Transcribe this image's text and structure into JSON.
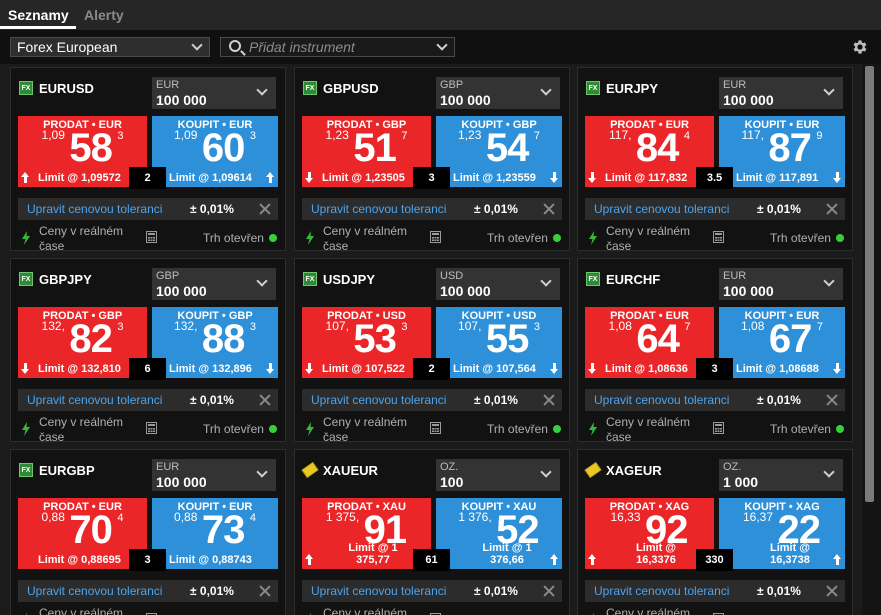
{
  "tabs": [
    {
      "label": "Seznamy",
      "active": true
    },
    {
      "label": "Alerty",
      "active": false
    }
  ],
  "toolbar": {
    "list_selected": "Forex European",
    "search_placeholder": "Přidat instrument",
    "settings_icon": "gear-icon"
  },
  "labels": {
    "tolerance_link": "Upravit cenovou toleranci",
    "realtime": "Ceny v reálném čase",
    "market_open": "Trh otevřen",
    "limit_prefix": "Limit @ "
  },
  "colors": {
    "sell": "#eb2629",
    "buy": "#2e90d8",
    "link": "#4ca4ee",
    "market_open_dot": "#38d038"
  },
  "cards": [
    {
      "instrument": "EURUSD",
      "icon": "fx-icon",
      "qty_currency": "EUR",
      "qty_value": "100 000",
      "sell": {
        "label": "PRODAT • EUR",
        "small": "1,09",
        "big": "58",
        "sup": "3",
        "limit": "1,09572",
        "arrow": "up"
      },
      "buy": {
        "label": "KOUPIT • EUR",
        "small": "1,09",
        "big": "60",
        "sup": "3",
        "limit": "1,09614",
        "arrow": "up"
      },
      "spread": "2",
      "tolerance": "± 0,01%"
    },
    {
      "instrument": "GBPUSD",
      "icon": "fx-icon",
      "qty_currency": "GBP",
      "qty_value": "100 000",
      "sell": {
        "label": "PRODAT • GBP",
        "small": "1,23",
        "big": "51",
        "sup": "7",
        "limit": "1,23505",
        "arrow": "down"
      },
      "buy": {
        "label": "KOUPIT • GBP",
        "small": "1,23",
        "big": "54",
        "sup": "7",
        "limit": "1,23559",
        "arrow": "down"
      },
      "spread": "3",
      "tolerance": "± 0,01%"
    },
    {
      "instrument": "EURJPY",
      "icon": "fx-icon",
      "qty_currency": "EUR",
      "qty_value": "100 000",
      "sell": {
        "label": "PRODAT • EUR",
        "small": "117,",
        "big": "84",
        "sup": "4",
        "limit": "117,832",
        "arrow": "down"
      },
      "buy": {
        "label": "KOUPIT • EUR",
        "small": "117,",
        "big": "87",
        "sup": "9",
        "limit": "117,891",
        "arrow": "down"
      },
      "spread": "3.5",
      "tolerance": "± 0,01%"
    },
    {
      "instrument": "GBPJPY",
      "icon": "fx-icon",
      "qty_currency": "GBP",
      "qty_value": "100 000",
      "sell": {
        "label": "PRODAT • GBP",
        "small": "132,",
        "big": "82",
        "sup": "3",
        "limit": "132,810",
        "arrow": "down"
      },
      "buy": {
        "label": "KOUPIT • GBP",
        "small": "132,",
        "big": "88",
        "sup": "3",
        "limit": "132,896",
        "arrow": "down"
      },
      "spread": "6",
      "tolerance": "± 0,01%"
    },
    {
      "instrument": "USDJPY",
      "icon": "fx-icon",
      "qty_currency": "USD",
      "qty_value": "100 000",
      "sell": {
        "label": "PRODAT • USD",
        "small": "107,",
        "big": "53",
        "sup": "3",
        "limit": "107,522",
        "arrow": "down"
      },
      "buy": {
        "label": "KOUPIT • USD",
        "small": "107,",
        "big": "55",
        "sup": "3",
        "limit": "107,564",
        "arrow": "down"
      },
      "spread": "2",
      "tolerance": "± 0,01%"
    },
    {
      "instrument": "EURCHF",
      "icon": "fx-icon",
      "qty_currency": "EUR",
      "qty_value": "100 000",
      "sell": {
        "label": "PRODAT • EUR",
        "small": "1,08",
        "big": "64",
        "sup": "7",
        "limit": "1,08636",
        "arrow": "down"
      },
      "buy": {
        "label": "KOUPIT • EUR",
        "small": "1,08",
        "big": "67",
        "sup": "7",
        "limit": "1,08688",
        "arrow": "down"
      },
      "spread": "3",
      "tolerance": "± 0,01%"
    },
    {
      "instrument": "EURGBP",
      "icon": "fx-icon",
      "qty_currency": "EUR",
      "qty_value": "100 000",
      "sell": {
        "label": "PRODAT • EUR",
        "small": "0,88",
        "big": "70",
        "sup": "4",
        "limit": "0,88695",
        "arrow": "none"
      },
      "buy": {
        "label": "KOUPIT • EUR",
        "small": "0,88",
        "big": "73",
        "sup": "4",
        "limit": "0,88743",
        "arrow": "none"
      },
      "spread": "3",
      "tolerance": "± 0,01%"
    },
    {
      "instrument": "XAUEUR",
      "icon": "metal-icon",
      "qty_currency": "OZ.",
      "qty_value": "100",
      "sell": {
        "label": "PRODAT • XAU",
        "small": "1 375,",
        "big": "91",
        "sup": "",
        "limit": "1 375,77",
        "arrow": "up"
      },
      "buy": {
        "label": "KOUPIT • XAU",
        "small": "1 376,",
        "big": "52",
        "sup": "",
        "limit": "1 376,66",
        "arrow": "up"
      },
      "spread": "61",
      "tolerance": "± 0,01%"
    },
    {
      "instrument": "XAGEUR",
      "icon": "metal-icon",
      "qty_currency": "OZ.",
      "qty_value": "1 000",
      "sell": {
        "label": "PRODAT • XAG",
        "small": "16,33",
        "big": "92",
        "sup": "",
        "limit": "16,3376",
        "arrow": "up"
      },
      "buy": {
        "label": "KOUPIT • XAG",
        "small": "16,37",
        "big": "22",
        "sup": "",
        "limit": "16,3738",
        "arrow": "up"
      },
      "spread": "330",
      "tolerance": "± 0,01%"
    }
  ]
}
